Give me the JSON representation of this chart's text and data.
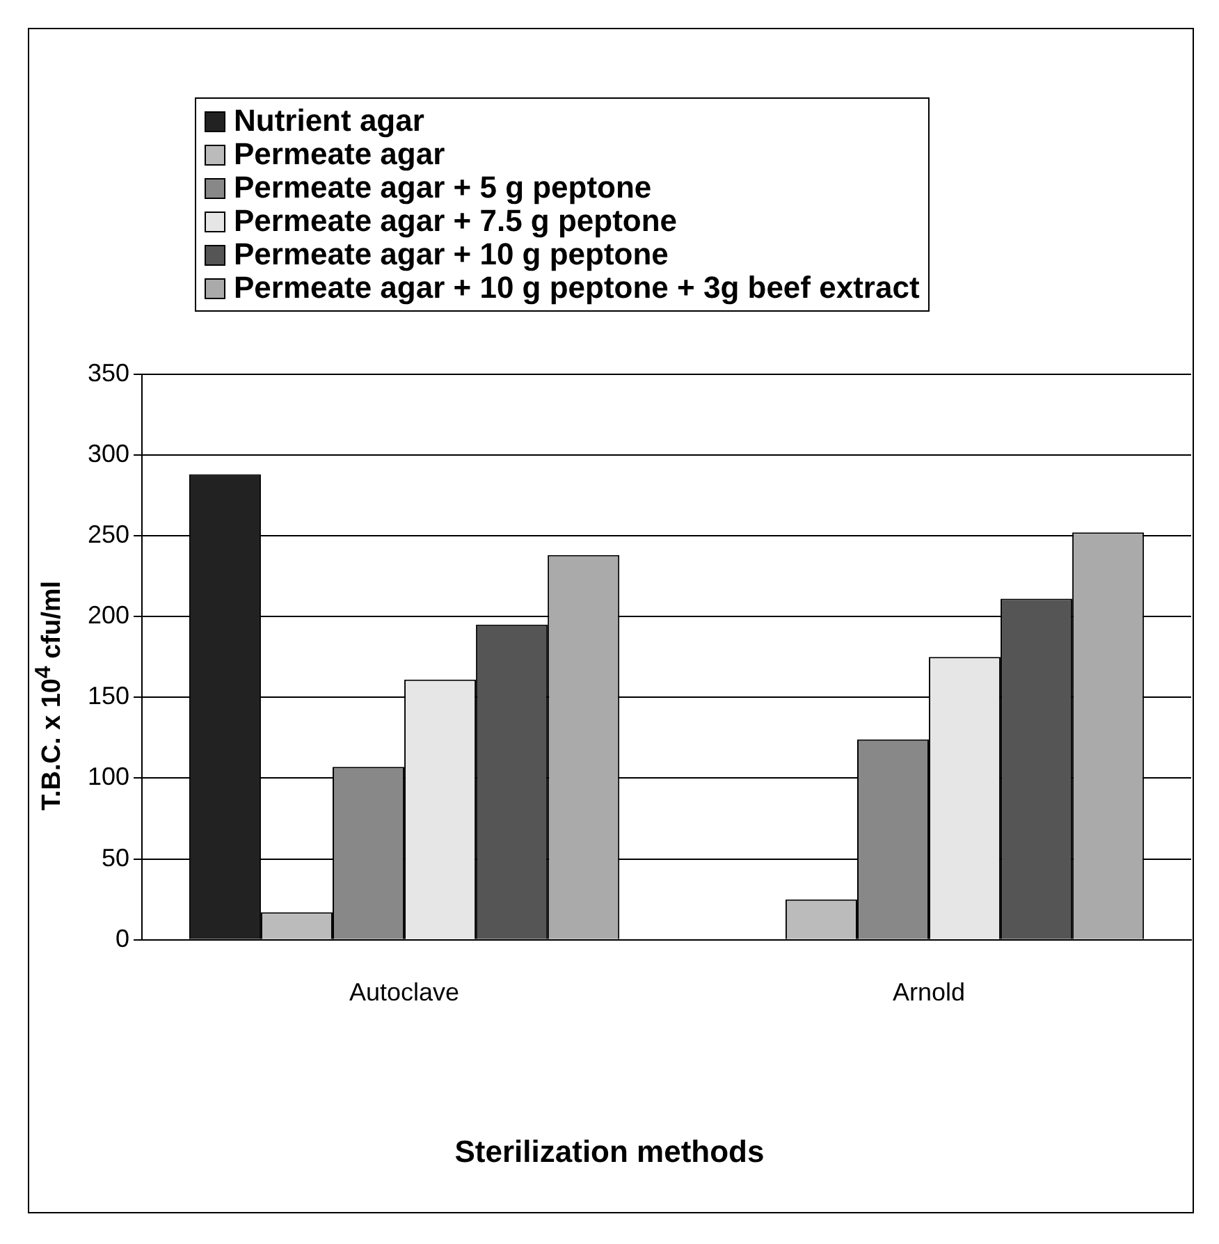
{
  "chart_data": {
    "type": "bar",
    "xlabel": "Sterilization methods",
    "ylabel": "T.B.C. x 10$^{4}$ cfu/ml",
    "categories": [
      "Autoclave",
      "Arnold"
    ],
    "series": [
      {
        "name": "Nutrient agar",
        "color": "#222222",
        "values": [
          288,
          null
        ]
      },
      {
        "name": "Permeate agar",
        "color": "#bbbbbb",
        "values": [
          17,
          25
        ]
      },
      {
        "name": "Permeate agar + 5 g peptone",
        "color": "#888888",
        "values": [
          107,
          124
        ]
      },
      {
        "name": "Permeate agar + 7.5 g peptone",
        "color": "#e6e6e6",
        "values": [
          161,
          175
        ]
      },
      {
        "name": "Permeate agar + 10 g peptone",
        "color": "#555555",
        "values": [
          195,
          211
        ]
      },
      {
        "name": "Permeate agar + 10 g peptone + 3g beef extract",
        "color": "#aaaaaa",
        "values": [
          238,
          252
        ]
      }
    ],
    "ylim": [
      0,
      350
    ],
    "yticks": [
      0,
      50,
      100,
      150,
      200,
      250,
      300,
      350
    ],
    "grid": "y",
    "legend": "top"
  }
}
